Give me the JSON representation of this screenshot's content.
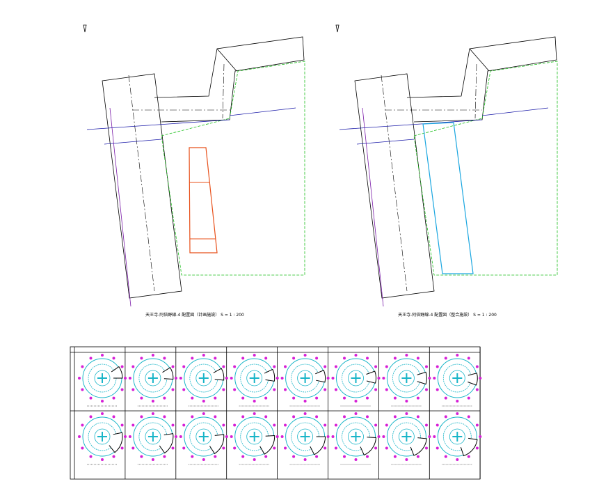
{
  "drawings": [
    {
      "caption": "天王寺-阿倍野線-4 配置図（計画施設） S = 1 : 200"
    },
    {
      "caption": "天王寺-阿倍野線-4 配置図（整合施設） S = 1 : 200"
    }
  ]
}
